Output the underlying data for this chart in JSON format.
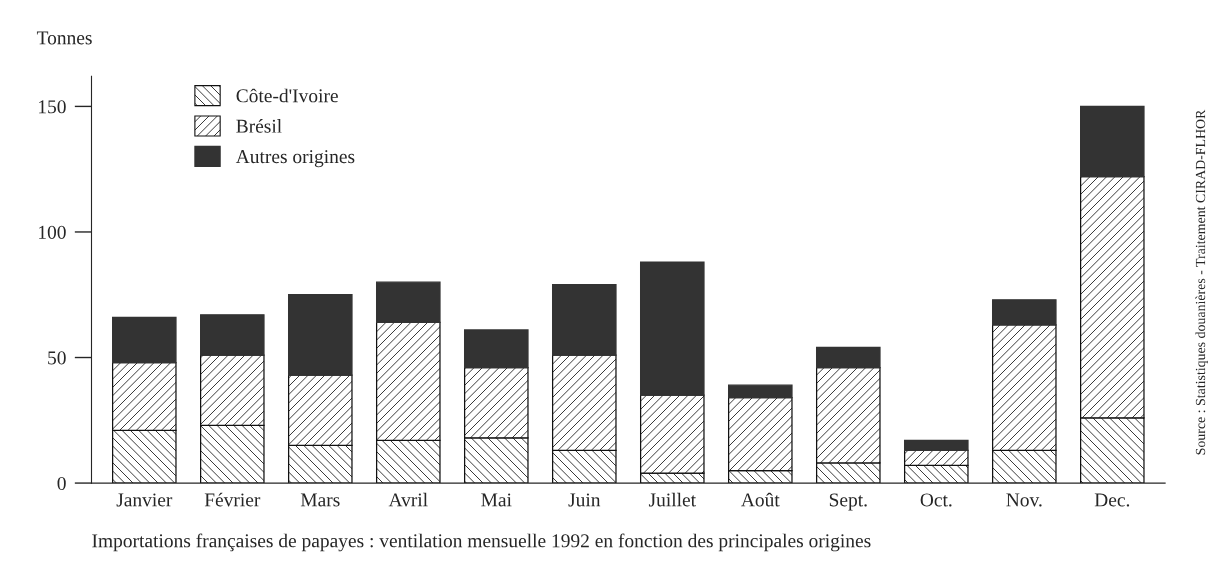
{
  "chart_data": {
    "type": "bar",
    "stacked": true,
    "title": "Importations françaises de papayes : ventilation mensuelle 1992 en fonction des principales origines",
    "ylabel": "Tonnes",
    "categories": [
      "Janvier",
      "Février",
      "Mars",
      "Avril",
      "Mai",
      "Juin",
      "Juillet",
      "Août",
      "Sept.",
      "Oct.",
      "Nov.",
      "Dec."
    ],
    "series": [
      {
        "name": "Côte-d'Ivoire",
        "color": "#111111",
        "values": [
          21,
          23,
          15,
          17,
          18,
          13,
          4,
          5,
          8,
          7,
          13,
          26
        ]
      },
      {
        "name": "Brésil",
        "color": "#111111",
        "values": [
          27,
          28,
          28,
          47,
          28,
          38,
          31,
          29,
          38,
          6,
          50,
          96
        ]
      },
      {
        "name": "Autres origines",
        "color": "#333333",
        "values": [
          18,
          16,
          32,
          16,
          15,
          28,
          53,
          5,
          8,
          4,
          10,
          28
        ]
      }
    ],
    "ylim": [
      0,
      162
    ],
    "yticks": [
      0,
      50,
      100,
      150
    ],
    "grid": false,
    "legend": "top left",
    "annotations": [
      "Source : Statistiques douanières - Traitement CIRAD-FLHOR"
    ]
  }
}
